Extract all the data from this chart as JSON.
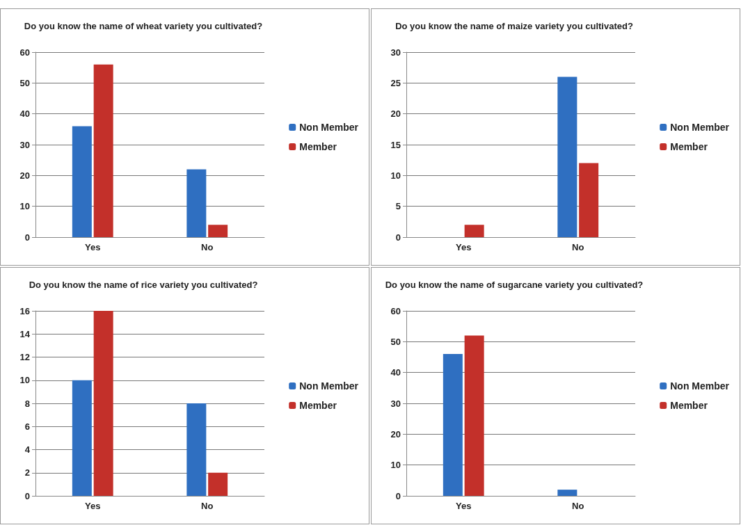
{
  "chart_data": [
    {
      "type": "bar",
      "title": "Do you know the name of wheat variety you cultivated?",
      "categories": [
        "Yes",
        "No"
      ],
      "series": [
        {
          "name": "Non Member",
          "color": "#2f6fc1",
          "values": [
            36,
            22
          ]
        },
        {
          "name": "Member",
          "color": "#c3302a",
          "values": [
            56,
            4
          ]
        }
      ],
      "ylim": [
        0,
        60
      ],
      "yticks": [
        0,
        10,
        20,
        30,
        40,
        50,
        60
      ],
      "grid": "y",
      "legend": "right"
    },
    {
      "type": "bar",
      "title": "Do you know the name of maize variety you cultivated?",
      "categories": [
        "Yes",
        "No"
      ],
      "series": [
        {
          "name": "Non Member",
          "color": "#2f6fc1",
          "values": [
            0,
            26
          ]
        },
        {
          "name": "Member",
          "color": "#c3302a",
          "values": [
            2,
            12
          ]
        }
      ],
      "ylim": [
        0,
        30
      ],
      "yticks": [
        0,
        5,
        10,
        15,
        20,
        25,
        30
      ],
      "grid": "y",
      "legend": "right"
    },
    {
      "type": "bar",
      "title": "Do you know the name of rice variety you cultivated?",
      "categories": [
        "Yes",
        "No"
      ],
      "series": [
        {
          "name": "Non Member",
          "color": "#2f6fc1",
          "values": [
            10,
            8
          ]
        },
        {
          "name": "Member",
          "color": "#c3302a",
          "values": [
            16,
            2
          ]
        }
      ],
      "ylim": [
        0,
        16
      ],
      "yticks": [
        0,
        2,
        4,
        6,
        8,
        10,
        12,
        14,
        16
      ],
      "grid": "y",
      "legend": "right"
    },
    {
      "type": "bar",
      "title": "Do you know the name of sugarcane variety you cultivated?",
      "categories": [
        "Yes",
        "No"
      ],
      "series": [
        {
          "name": "Non Member",
          "color": "#2f6fc1",
          "values": [
            46,
            2
          ]
        },
        {
          "name": "Member",
          "color": "#c3302a",
          "values": [
            52,
            0
          ]
        }
      ],
      "ylim": [
        0,
        60
      ],
      "yticks": [
        0,
        10,
        20,
        30,
        40,
        50,
        60
      ],
      "grid": "y",
      "legend": "right"
    }
  ]
}
